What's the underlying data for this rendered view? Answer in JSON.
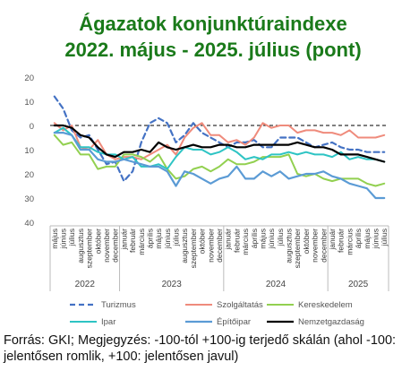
{
  "chart_data": {
    "type": "line",
    "title_line1": "Ágazatok konjunktúraindexe",
    "title_line2": "2022. május - 2025. július (pont)",
    "title_color": "#1a7a1a",
    "ylim": [
      -40,
      20
    ],
    "y_ticks": [
      20,
      10,
      0,
      -10,
      -20,
      -30,
      -40
    ],
    "y_tick_labels": [
      "20",
      "10",
      "0",
      "10",
      "20",
      "30",
      "40"
    ],
    "reference_line": 0,
    "x": [
      "május",
      "június",
      "július",
      "augusztus",
      "szeptember",
      "október",
      "november",
      "december",
      "január",
      "február",
      "március",
      "április",
      "május",
      "június",
      "július",
      "augusztus",
      "szeptember",
      "október",
      "november",
      "december",
      "január",
      "február",
      "március",
      "április",
      "május",
      "június",
      "július",
      "augusztus",
      "szeptember",
      "október",
      "november",
      "december",
      "január",
      "február",
      "március",
      "április",
      "május",
      "június",
      "július"
    ],
    "year_groups": [
      {
        "label": "2022",
        "start": 0,
        "end": 7
      },
      {
        "label": "2023",
        "start": 8,
        "end": 19
      },
      {
        "label": "2024",
        "start": 20,
        "end": 31
      },
      {
        "label": "2025",
        "start": 32,
        "end": 38
      }
    ],
    "series": [
      {
        "name": "Turizmus",
        "color": "#4472c4",
        "dash": "6,4",
        "width": 2.2,
        "values": [
          12,
          7,
          -2,
          -5,
          -4,
          -10,
          -16,
          -15,
          -23,
          -19,
          -7,
          1,
          3,
          1,
          -7,
          -4,
          1,
          -3,
          -5,
          -7,
          -9,
          -7,
          -7,
          -6,
          -9,
          -9,
          -5,
          -5,
          -5,
          -7,
          -9,
          -8,
          -7,
          -9,
          -10,
          -10,
          -11,
          -11,
          -11
        ]
      },
      {
        "name": "Szolgáltatás",
        "color": "#ef8b7c",
        "dash": "",
        "width": 2,
        "values": [
          1,
          -2,
          0,
          -9,
          -10,
          -6,
          -12,
          -14,
          -13,
          -13,
          -14,
          -12,
          -10,
          -8,
          -12,
          -5,
          -1,
          1,
          -4,
          -4,
          -7,
          -6,
          -8,
          -5,
          1,
          -1,
          0,
          0,
          -3,
          -2,
          -2,
          -3,
          -3,
          -4,
          -2,
          -5,
          -5,
          -5,
          -4
        ]
      },
      {
        "name": "Kereskedelem",
        "color": "#92d050",
        "dash": "",
        "width": 2,
        "values": [
          -4,
          -8,
          -7,
          -12,
          -12,
          -18,
          -17,
          -17,
          -12,
          -12,
          -13,
          -15,
          -12,
          -18,
          -22,
          -21,
          -18,
          -17,
          -19,
          -17,
          -14,
          -16,
          -16,
          -15,
          -13,
          -13,
          -13,
          -12,
          -20,
          -21,
          -20,
          -22,
          -23,
          -22,
          -22,
          -22,
          -24,
          -25,
          -24
        ]
      },
      {
        "name": "Ipar",
        "color": "#2ec4c4",
        "dash": "",
        "width": 2,
        "values": [
          -3,
          -1,
          -4,
          -9,
          -9,
          -11,
          -12,
          -12,
          -14,
          -13,
          -17,
          -17,
          -16,
          -18,
          -13,
          -9,
          -10,
          -10,
          -12,
          -11,
          -9,
          -11,
          -14,
          -13,
          -14,
          -12,
          -12,
          -11,
          -12,
          -11,
          -12,
          -12,
          -13,
          -11,
          -14,
          -13,
          -14,
          -14,
          -15
        ]
      },
      {
        "name": "Építőipar",
        "color": "#5b9bd5",
        "dash": "",
        "width": 2.2,
        "values": [
          -3,
          -3,
          -4,
          -10,
          -10,
          -14,
          -15,
          -15,
          -14,
          -15,
          -16,
          -17,
          -17,
          -19,
          -25,
          -19,
          -20,
          -22,
          -24,
          -22,
          -21,
          -17,
          -22,
          -22,
          -19,
          -21,
          -19,
          -22,
          -21,
          -20,
          -20,
          -19,
          -21,
          -22,
          -24,
          -25,
          -26,
          -30,
          -30
        ]
      },
      {
        "name": "Nemzetgazdaság",
        "color": "#000000",
        "dash": "",
        "width": 2.2,
        "values": [
          0,
          0,
          -1,
          -4,
          -5,
          -9,
          -12,
          -13,
          -11,
          -11,
          -10,
          -11,
          -7,
          -9,
          -10,
          -9,
          -8,
          -9,
          -9,
          -8,
          -8,
          -9,
          -9,
          -8,
          -8,
          -8,
          -8,
          -8,
          -7,
          -8,
          -9,
          -9,
          -10,
          -12,
          -12,
          -12,
          -13,
          -14,
          -15
        ]
      }
    ],
    "legend_position": "bottom",
    "grid": false
  },
  "source_note": "Forrás: GKI; Megjegyzés: -100-tól +100-ig terjedő skálán (ahol -100: jelentősen romlik, +100: jelentősen javul)"
}
